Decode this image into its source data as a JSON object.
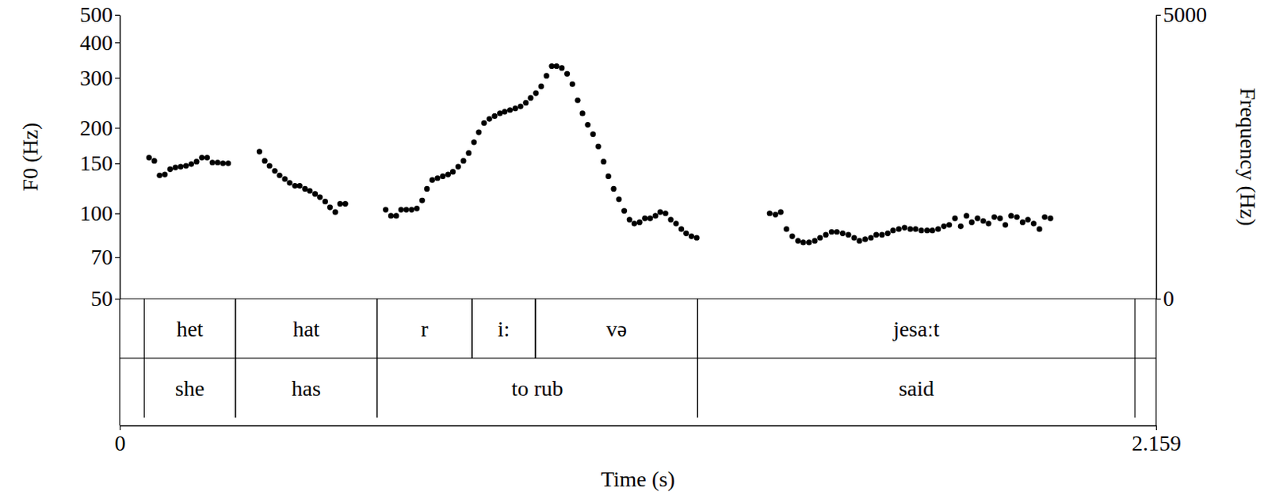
{
  "chart_data": {
    "type": "scatter",
    "xlabel": "Time (s)",
    "ylabel": "F0 (Hz)",
    "y2label": "Frequency (Hz)",
    "log": "y",
    "xlim": [
      0,
      2.159
    ],
    "xticks": [
      0,
      2.159
    ],
    "ylim": [
      50,
      500
    ],
    "yticks": [
      50,
      70,
      100,
      150,
      200,
      300,
      400,
      500
    ],
    "y2lim": [
      0,
      5000
    ],
    "y2ticks": [
      0,
      5000
    ],
    "series": [
      {
        "color": "#000000",
        "marker": "circle",
        "x": [
          0.061,
          0.072,
          0.083,
          0.094,
          0.105,
          0.116,
          0.127,
          0.138,
          0.149,
          0.16,
          0.171,
          0.182,
          0.193,
          0.204,
          0.215,
          0.226,
          0.291,
          0.302,
          0.312,
          0.323,
          0.333,
          0.344,
          0.354,
          0.365,
          0.375,
          0.386,
          0.396,
          0.407,
          0.417,
          0.428,
          0.438,
          0.449,
          0.459,
          0.47,
          0.554,
          0.565,
          0.576,
          0.586,
          0.597,
          0.608,
          0.619,
          0.63,
          0.64,
          0.651,
          0.662,
          0.673,
          0.684,
          0.694,
          0.705,
          0.716,
          0.727,
          0.738,
          0.748,
          0.759,
          0.77,
          0.781,
          0.792,
          0.802,
          0.813,
          0.824,
          0.835,
          0.846,
          0.856,
          0.867,
          0.878,
          0.889,
          0.9,
          0.91,
          0.921,
          0.932,
          0.943,
          0.954,
          0.964,
          0.975,
          0.986,
          0.997,
          1.008,
          1.018,
          1.029,
          1.04,
          1.051,
          1.062,
          1.072,
          1.083,
          1.094,
          1.105,
          1.116,
          1.126,
          1.137,
          1.148,
          1.159,
          1.17,
          1.18,
          1.191,
          1.202,
          1.354,
          1.366,
          1.377,
          1.389,
          1.401,
          1.413,
          1.424,
          1.436,
          1.448,
          1.459,
          1.471,
          1.483,
          1.494,
          1.506,
          1.518,
          1.53,
          1.541,
          1.553,
          1.565,
          1.576,
          1.588,
          1.6,
          1.611,
          1.623,
          1.635,
          1.647,
          1.658,
          1.67,
          1.682,
          1.693,
          1.705,
          1.717,
          1.728,
          1.74,
          1.752,
          1.764,
          1.775,
          1.787,
          1.799,
          1.81,
          1.822,
          1.834,
          1.845,
          1.857,
          1.869,
          1.881,
          1.892,
          1.904,
          1.916,
          1.927,
          1.939
        ],
        "values": [
          157,
          153,
          136,
          137,
          143,
          145,
          146,
          147,
          149,
          152,
          157,
          157,
          151,
          151,
          150,
          150,
          165,
          153,
          147,
          141,
          136,
          132,
          128,
          125,
          125,
          122,
          120,
          117,
          114,
          110,
          105,
          101,
          108,
          108,
          103,
          98,
          98,
          103,
          103,
          103,
          104,
          111,
          122,
          131,
          133,
          135,
          137,
          140,
          146,
          153,
          163,
          178,
          193,
          208,
          215,
          220,
          225,
          228,
          231,
          234,
          238,
          245,
          255,
          265,
          280,
          305,
          330,
          330,
          325,
          310,
          285,
          250,
          225,
          205,
          190,
          172,
          152,
          135,
          122,
          112,
          102,
          95,
          92,
          93,
          96,
          96,
          98,
          101,
          100,
          95,
          92,
          88,
          85,
          83,
          82,
          100,
          99,
          101,
          88,
          83,
          80,
          79,
          79,
          80,
          82,
          84,
          86,
          86,
          85,
          84,
          82,
          80,
          81,
          82,
          84,
          84,
          85,
          87,
          88,
          89,
          88,
          88,
          87,
          87,
          87,
          88,
          90,
          91,
          96,
          90,
          98,
          93,
          96,
          94,
          92,
          97,
          96,
          91,
          98,
          97,
          93,
          95,
          92,
          88,
          97,
          96
        ]
      }
    ],
    "tiers": [
      {
        "intervals": [
          {
            "start": 0.051,
            "end": 0.241,
            "label": "het"
          },
          {
            "start": 0.241,
            "end": 0.536,
            "label": "hat"
          },
          {
            "start": 0.536,
            "end": 0.734,
            "label": "r"
          },
          {
            "start": 0.734,
            "end": 0.866,
            "label": "i:"
          },
          {
            "start": 0.866,
            "end": 1.204,
            "label": "və"
          },
          {
            "start": 1.204,
            "end": 2.115,
            "label": "jesaːt"
          }
        ]
      },
      {
        "intervals": [
          {
            "start": 0.051,
            "end": 0.241,
            "label": "she"
          },
          {
            "start": 0.241,
            "end": 0.536,
            "label": "has"
          },
          {
            "start": 0.536,
            "end": 1.204,
            "label": "to rub"
          },
          {
            "start": 1.204,
            "end": 2.115,
            "label": "said"
          }
        ]
      }
    ]
  }
}
